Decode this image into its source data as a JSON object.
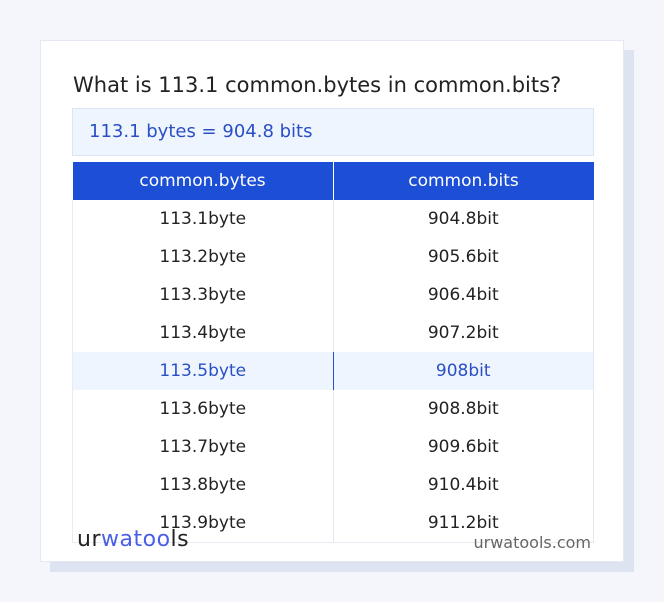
{
  "title": "What is 113.1 common.bytes in common.bits?",
  "result": "113.1 bytes = 904.8 bits",
  "table": {
    "headers": [
      "common.bytes",
      "common.bits"
    ],
    "rows": [
      [
        "113.1byte",
        "904.8bit"
      ],
      [
        "113.2byte",
        "905.6bit"
      ],
      [
        "113.3byte",
        "906.4bit"
      ],
      [
        "113.4byte",
        "907.2bit"
      ],
      [
        "113.5byte",
        "908bit"
      ],
      [
        "113.6byte",
        "908.8bit"
      ],
      [
        "113.7byte",
        "909.6bit"
      ],
      [
        "113.8byte",
        "910.4bit"
      ],
      [
        "113.9byte",
        "911.2bit"
      ]
    ],
    "highlighted_row": 4
  },
  "footer": {
    "logo": "urwatools",
    "logo_parts": [
      "ur",
      "wa",
      "too",
      "ls"
    ],
    "site": "urwatools.com"
  },
  "colors": {
    "accent": "#1c4fd6",
    "highlight_bg": "#eef5fe",
    "highlight_text": "#2a4fc4"
  }
}
